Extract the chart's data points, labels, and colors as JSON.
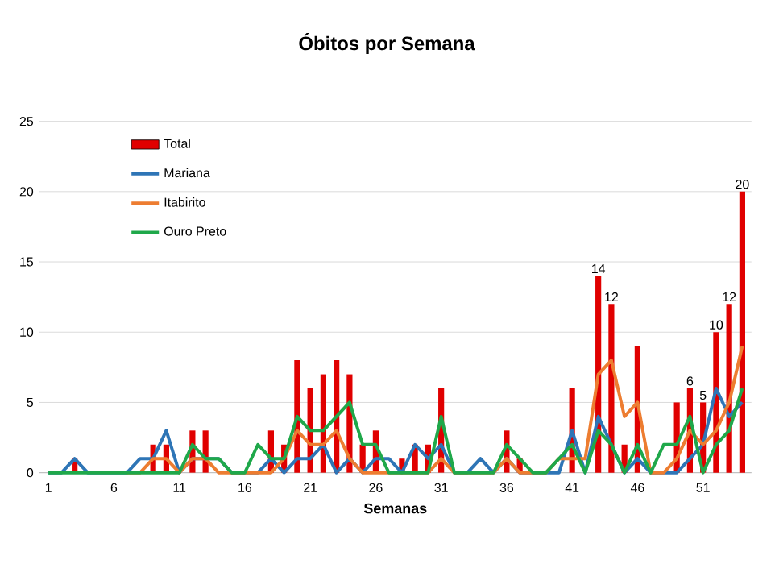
{
  "chart_data": {
    "type": "bar",
    "title": "Óbitos por Semana",
    "xlabel": "Semanas",
    "categories": [
      "1",
      null,
      null,
      null,
      null,
      "6",
      null,
      null,
      null,
      null,
      "11",
      null,
      null,
      null,
      null,
      "16",
      null,
      null,
      null,
      null,
      "21",
      null,
      null,
      null,
      null,
      "26",
      null,
      null,
      null,
      null,
      "31",
      null,
      null,
      null,
      null,
      "36",
      null,
      null,
      null,
      null,
      "41",
      null,
      null,
      null,
      null,
      "46",
      null,
      null,
      null,
      null,
      "51",
      null,
      null,
      null
    ],
    "series": [
      {
        "name": "Total",
        "color": "#e00000",
        "values": [
          0,
          0,
          1,
          0,
          0,
          0,
          0,
          0,
          2,
          2,
          0,
          3,
          3,
          0,
          0,
          0,
          0,
          3,
          2,
          8,
          6,
          7,
          8,
          7,
          2,
          3,
          null,
          1,
          2,
          2,
          6,
          0,
          0,
          0,
          0,
          3,
          1,
          0,
          0,
          0,
          6,
          null,
          14,
          12,
          2,
          9,
          null,
          0,
          5,
          6,
          5,
          10,
          12,
          20
        ],
        "value_labels": [
          null,
          null,
          null,
          null,
          null,
          null,
          null,
          null,
          null,
          null,
          null,
          null,
          null,
          null,
          null,
          null,
          null,
          null,
          null,
          null,
          null,
          null,
          null,
          null,
          null,
          null,
          null,
          null,
          null,
          null,
          null,
          null,
          null,
          null,
          null,
          null,
          null,
          null,
          null,
          null,
          null,
          null,
          "14",
          "12",
          null,
          null,
          null,
          null,
          null,
          "6",
          "5",
          "10",
          "12",
          "20"
        ]
      },
      {
        "name": "Mariana",
        "type": "line",
        "color": "#2e75b6",
        "values": [
          0,
          0,
          1,
          0,
          0,
          0,
          0,
          1,
          1,
          3,
          0,
          1,
          1,
          1,
          0,
          0,
          0,
          1,
          0,
          1,
          1,
          2,
          0,
          1,
          0,
          1,
          1,
          0,
          2,
          1,
          2,
          0,
          0,
          1,
          0,
          1,
          0,
          0,
          0,
          0,
          3,
          0,
          4,
          2,
          0,
          1,
          0,
          0,
          0,
          1,
          2,
          6,
          4,
          5
        ]
      },
      {
        "name": "Itabirito",
        "type": "line",
        "color": "#ed7d31",
        "values": [
          null,
          null,
          null,
          null,
          null,
          null,
          0,
          0,
          1,
          1,
          0,
          1,
          1,
          0,
          0,
          0,
          0,
          0,
          1,
          3,
          2,
          2,
          3,
          1,
          0,
          0,
          0,
          0,
          0,
          0,
          1,
          0,
          0,
          0,
          0,
          1,
          0,
          0,
          0,
          1,
          1,
          1,
          7,
          8,
          4,
          5,
          0,
          0,
          1,
          3,
          2,
          3,
          5,
          9
        ]
      },
      {
        "name": "Ouro Preto",
        "type": "line",
        "color": "#1fa84a",
        "values": [
          0,
          0,
          0,
          0,
          0,
          0,
          0,
          0,
          0,
          0,
          0,
          2,
          1,
          1,
          0,
          0,
          2,
          1,
          1,
          4,
          3,
          3,
          4,
          5,
          2,
          2,
          0,
          0,
          0,
          0,
          4,
          0,
          0,
          0,
          0,
          2,
          1,
          0,
          0,
          1,
          2,
          0,
          3,
          2,
          0,
          2,
          0,
          2,
          2,
          4,
          0,
          2,
          3,
          6
        ]
      }
    ],
    "ylim": [
      0,
      25
    ],
    "yticks": [
      0,
      5,
      10,
      15,
      20,
      25
    ],
    "grid": "y",
    "legend": "top left"
  }
}
